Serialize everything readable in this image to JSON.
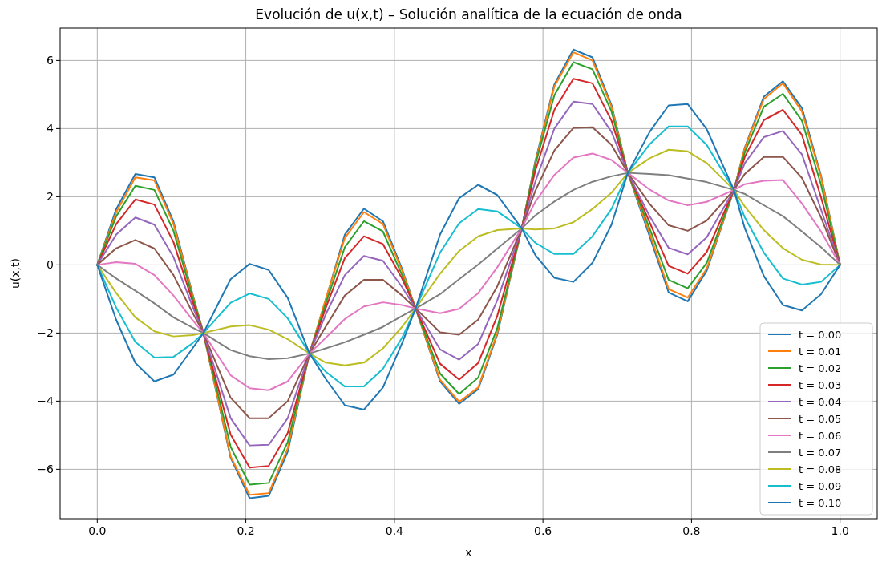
{
  "chart_data": {
    "type": "line",
    "title": "Evolución de u(x,t) – Solución analítica de la ecuación de onda",
    "xlabel": "x",
    "ylabel": "u(x,t)",
    "x": [
      0,
      0.0256,
      0.0513,
      0.0769,
      0.1026,
      0.1282,
      0.1429,
      0.1795,
      0.2051,
      0.2308,
      0.2564,
      0.2857,
      0.3077,
      0.3333,
      0.359,
      0.3846,
      0.4103,
      0.4286,
      0.4615,
      0.4872,
      0.5128,
      0.5385,
      0.5714,
      0.5897,
      0.6154,
      0.641,
      0.6667,
      0.6923,
      0.7143,
      0.7436,
      0.7692,
      0.7949,
      0.8205,
      0.8571,
      0.8718,
      0.8974,
      0.9231,
      0.9487,
      0.9744,
      1
    ],
    "series": [
      {
        "name": "t = 0.00",
        "color": "#1f77b4",
        "values": [
          0,
          1.64,
          2.67,
          2.57,
          1.27,
          -0.85,
          -2.0,
          -5.66,
          -6.85,
          -6.78,
          -5.48,
          -2.6,
          -1.02,
          0.89,
          1.65,
          1.28,
          -0.12,
          -1.28,
          -3.42,
          -4.08,
          -3.65,
          -2.05,
          1.07,
          3.04,
          5.3,
          6.32,
          6.09,
          4.69,
          2.7,
          0.84,
          -0.81,
          -1.07,
          -0.17,
          2.2,
          3.45,
          4.94,
          5.39,
          4.6,
          2.62,
          0
        ]
      },
      {
        "name": "t = 0.01",
        "color": "#ff7f0e",
        "values": [
          0,
          1.55,
          2.57,
          2.48,
          1.2,
          -0.88,
          -2.0,
          -5.62,
          -6.75,
          -6.7,
          -5.38,
          -2.6,
          -1.0,
          0.79,
          1.55,
          1.2,
          -0.17,
          -1.28,
          -3.37,
          -4.02,
          -3.6,
          -2.0,
          1.07,
          2.99,
          5.24,
          6.24,
          6.0,
          4.64,
          2.7,
          0.93,
          -0.71,
          -0.96,
          -0.11,
          2.2,
          3.43,
          4.87,
          5.33,
          4.5,
          2.58,
          0
        ]
      },
      {
        "name": "t = 0.02",
        "color": "#2ca02c",
        "values": [
          0,
          1.43,
          2.32,
          2.2,
          1.0,
          -0.95,
          -2.0,
          -5.34,
          -6.45,
          -6.4,
          -5.2,
          -2.6,
          -1.13,
          0.52,
          1.28,
          0.98,
          -0.3,
          -1.28,
          -3.19,
          -3.79,
          -3.31,
          -1.86,
          1.07,
          2.94,
          4.98,
          5.95,
          5.74,
          4.5,
          2.7,
          1.07,
          -0.44,
          -0.69,
          0.06,
          2.2,
          3.31,
          4.64,
          5.02,
          4.23,
          2.35,
          0
        ]
      },
      {
        "name": "t = 0.03",
        "color": "#d62728",
        "values": [
          0,
          1.2,
          1.92,
          1.77,
          0.67,
          -1.07,
          -2.0,
          -4.98,
          -5.95,
          -5.9,
          -4.93,
          -2.6,
          -1.26,
          0.2,
          0.84,
          0.61,
          -0.4,
          -1.28,
          -2.9,
          -3.37,
          -2.88,
          -1.5,
          1.07,
          2.76,
          4.55,
          5.46,
          5.33,
          4.23,
          2.7,
          1.25,
          -0.03,
          -0.26,
          0.38,
          2.2,
          3.17,
          4.25,
          4.55,
          3.81,
          1.98,
          0
        ]
      },
      {
        "name": "t = 0.04",
        "color": "#9467bd",
        "values": [
          0,
          0.89,
          1.39,
          1.18,
          0.23,
          -1.22,
          -2.0,
          -4.5,
          -5.3,
          -5.28,
          -4.5,
          -2.6,
          -1.45,
          -0.3,
          0.26,
          0.12,
          -0.65,
          -1.28,
          -2.48,
          -2.78,
          -2.32,
          -1.04,
          1.07,
          2.44,
          4.0,
          4.79,
          4.72,
          3.9,
          2.7,
          1.43,
          0.5,
          0.31,
          0.81,
          2.2,
          2.99,
          3.75,
          3.93,
          3.24,
          1.62,
          0
        ]
      },
      {
        "name": "t = 0.05",
        "color": "#8c564b",
        "values": [
          0,
          0.49,
          0.73,
          0.48,
          -0.3,
          -1.4,
          -2.0,
          -3.9,
          -4.5,
          -4.5,
          -4.0,
          -2.6,
          -1.81,
          -0.9,
          -0.44,
          -0.44,
          -0.9,
          -1.28,
          -1.98,
          -2.05,
          -1.61,
          -0.63,
          1.07,
          2.17,
          3.36,
          4.02,
          4.04,
          3.52,
          2.7,
          1.79,
          1.16,
          1.0,
          1.3,
          2.2,
          2.67,
          3.17,
          3.17,
          2.55,
          1.39,
          0
        ]
      },
      {
        "name": "t = 0.06",
        "color": "#e377c2",
        "values": [
          0,
          0.08,
          0.03,
          -0.3,
          -0.9,
          -1.62,
          -2.0,
          -3.24,
          -3.62,
          -3.68,
          -3.42,
          -2.6,
          -2.14,
          -1.59,
          -1.22,
          -1.1,
          -1.18,
          -1.28,
          -1.42,
          -1.29,
          -0.83,
          -0.07,
          1.07,
          1.85,
          2.64,
          3.15,
          3.27,
          3.08,
          2.7,
          2.21,
          1.89,
          1.75,
          1.85,
          2.2,
          2.37,
          2.47,
          2.49,
          1.8,
          0.98,
          0
        ]
      },
      {
        "name": "t = 0.07",
        "color": "#7f7f7f",
        "values": [
          0,
          -0.4,
          -0.76,
          -1.13,
          -1.54,
          -1.84,
          -2.0,
          -2.5,
          -2.68,
          -2.77,
          -2.74,
          -2.6,
          -2.45,
          -2.27,
          -2.05,
          -1.82,
          -1.5,
          -1.28,
          -0.86,
          -0.42,
          0.01,
          0.48,
          1.07,
          1.45,
          1.86,
          2.2,
          2.44,
          2.6,
          2.7,
          2.67,
          2.63,
          2.53,
          2.43,
          2.2,
          2.08,
          1.75,
          1.43,
          0.98,
          0.52,
          0
        ]
      },
      {
        "name": "t = 0.08",
        "color": "#bcbd22",
        "values": [
          0,
          -0.83,
          -1.54,
          -1.95,
          -2.1,
          -2.06,
          -2.0,
          -1.81,
          -1.77,
          -1.9,
          -2.18,
          -2.6,
          -2.87,
          -2.95,
          -2.87,
          -2.45,
          -1.82,
          -1.28,
          -0.26,
          0.41,
          0.84,
          1.02,
          1.07,
          1.04,
          1.07,
          1.25,
          1.64,
          2.12,
          2.7,
          3.13,
          3.38,
          3.33,
          2.99,
          2.2,
          1.71,
          1.02,
          0.49,
          0.15,
          0.01,
          0
        ]
      },
      {
        "name": "t = 0.09",
        "color": "#17becf",
        "values": [
          0,
          -1.26,
          -2.26,
          -2.72,
          -2.7,
          -2.3,
          -2.0,
          -1.11,
          -0.84,
          -1.0,
          -1.57,
          -2.6,
          -3.14,
          -3.57,
          -3.57,
          -3.05,
          -2.14,
          -1.28,
          0.36,
          1.22,
          1.64,
          1.57,
          1.07,
          0.65,
          0.32,
          0.32,
          0.84,
          1.64,
          2.7,
          3.54,
          4.06,
          4.06,
          3.52,
          2.2,
          1.39,
          0.36,
          -0.4,
          -0.58,
          -0.5,
          0
        ]
      },
      {
        "name": "t = 0.10",
        "color": "#1f77b4",
        "values": [
          0,
          -1.62,
          -2.88,
          -3.42,
          -3.22,
          -2.45,
          -2.0,
          -0.42,
          0.03,
          -0.15,
          -0.97,
          -2.6,
          -3.35,
          -4.12,
          -4.25,
          -3.6,
          -2.3,
          -1.28,
          0.89,
          1.96,
          2.35,
          2.05,
          1.07,
          0.29,
          -0.38,
          -0.5,
          0.06,
          1.18,
          2.7,
          3.9,
          4.68,
          4.72,
          3.98,
          2.2,
          1.07,
          -0.33,
          -1.18,
          -1.34,
          -0.86,
          0
        ]
      }
    ],
    "xlim": [
      -0.05,
      1.05
    ],
    "ylim": [
      -7.45,
      6.95
    ],
    "xticks": [
      {
        "value": 0,
        "label": "0.0"
      },
      {
        "value": 0.2,
        "label": "0.2"
      },
      {
        "value": 0.4,
        "label": "0.4"
      },
      {
        "value": 0.6,
        "label": "0.6"
      },
      {
        "value": 0.8,
        "label": "0.8"
      },
      {
        "value": 1,
        "label": "1.0"
      }
    ],
    "yticks": [
      {
        "value": -6,
        "label": "−6"
      },
      {
        "value": -4,
        "label": "−4"
      },
      {
        "value": -2,
        "label": "−2"
      },
      0,
      2,
      4,
      6
    ],
    "grid": true,
    "legend": "bottom right",
    "line_style": "solid",
    "marker": "none"
  }
}
